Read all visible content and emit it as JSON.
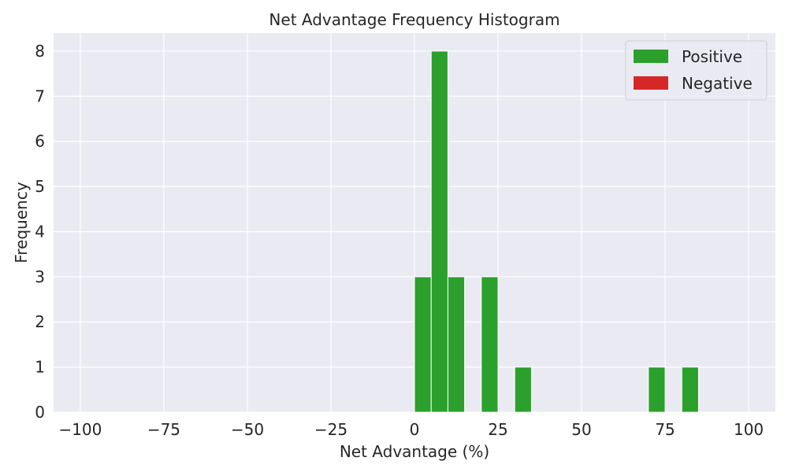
{
  "chart_data": {
    "type": "bar",
    "title": "Net Advantage Frequency Histogram",
    "xlabel": "Net Advantage (%)",
    "ylabel": "Frequency",
    "xlim": [
      -108,
      108
    ],
    "ylim": [
      0,
      8.4
    ],
    "xticks": [
      -100,
      -75,
      -50,
      -25,
      0,
      25,
      50,
      75,
      100
    ],
    "xtick_labels": [
      "−100",
      "−75",
      "−50",
      "−25",
      "0",
      "25",
      "50",
      "75",
      "100"
    ],
    "yticks": [
      0,
      1,
      2,
      3,
      4,
      5,
      6,
      7,
      8
    ],
    "ytick_labels": [
      "0",
      "1",
      "2",
      "3",
      "4",
      "5",
      "6",
      "7",
      "8"
    ],
    "bin_width": 5,
    "grid": true,
    "legend_position": "top-right",
    "background": "#eaeaf2",
    "series": [
      {
        "name": "Positive",
        "color": "#2ca02c",
        "bins": [
          {
            "start": 0,
            "end": 5,
            "count": 3
          },
          {
            "start": 5,
            "end": 10,
            "count": 8
          },
          {
            "start": 10,
            "end": 15,
            "count": 3
          },
          {
            "start": 20,
            "end": 25,
            "count": 3
          },
          {
            "start": 30,
            "end": 35,
            "count": 1
          },
          {
            "start": 70,
            "end": 75,
            "count": 1
          },
          {
            "start": 80,
            "end": 85,
            "count": 1
          }
        ]
      },
      {
        "name": "Negative",
        "color": "#d62728",
        "bins": []
      }
    ]
  }
}
